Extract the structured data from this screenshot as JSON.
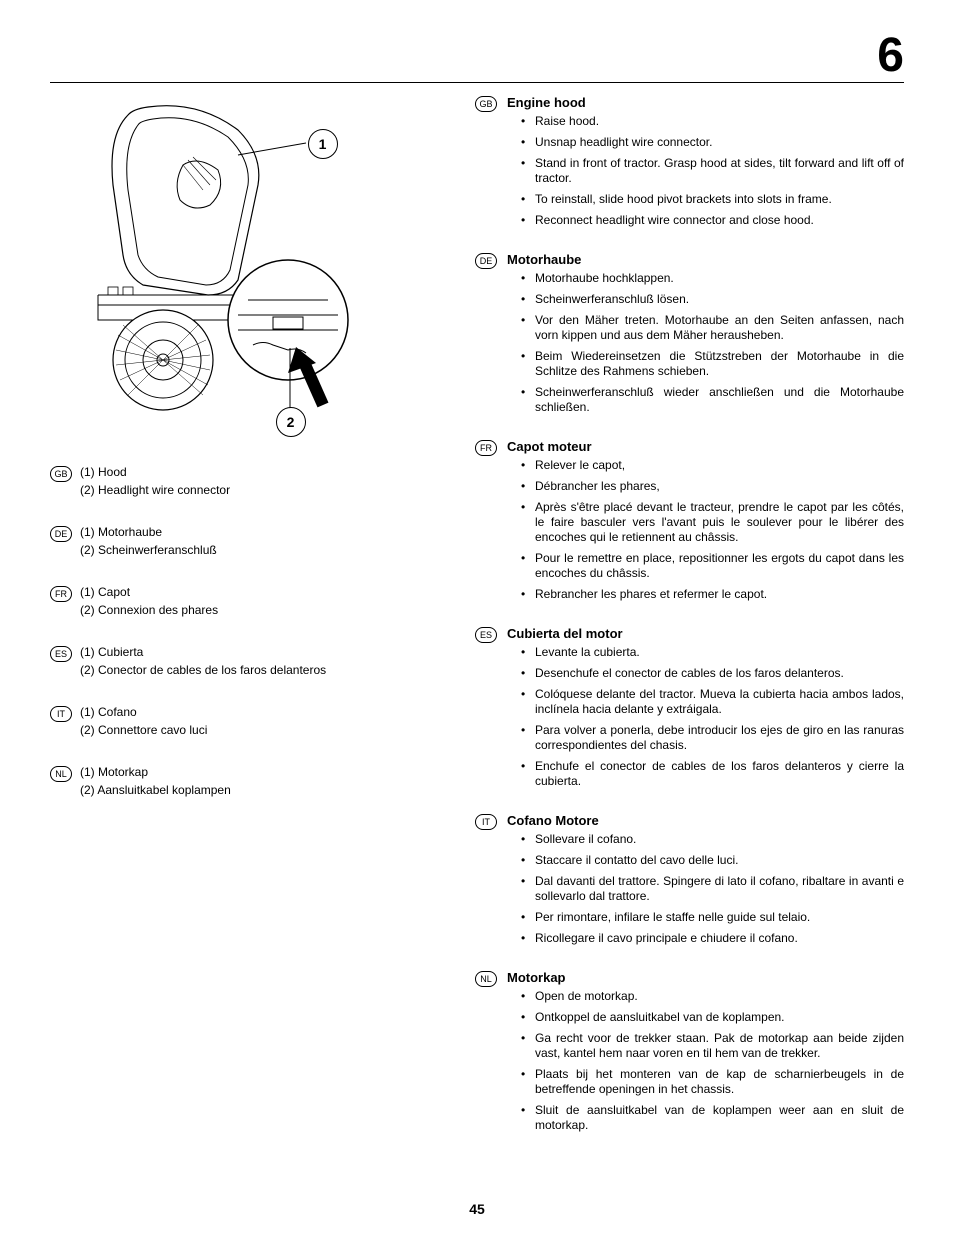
{
  "page": {
    "chapter_number": "6",
    "page_number": "45"
  },
  "diagram": {
    "callout1": "1",
    "callout2": "2"
  },
  "legends": [
    {
      "lang": "GB",
      "lines": [
        "(1)  Hood",
        "(2)  Headlight  wire connector"
      ]
    },
    {
      "lang": "DE",
      "lines": [
        "(1)  Motorhaube",
        "(2)  Scheinwerferanschluß"
      ]
    },
    {
      "lang": "FR",
      "lines": [
        "(1)  Capot",
        "(2)  Connexion des phares"
      ]
    },
    {
      "lang": "ES",
      "lines": [
        "(1)  Cubierta",
        "(2)  Conector de cables de los faros delanteros"
      ]
    },
    {
      "lang": "IT",
      "lines": [
        "(1)  Cofano",
        "(2)  Connettore cavo luci"
      ]
    },
    {
      "lang": "NL",
      "lines": [
        "(1)  Motorkap",
        "(2)  Aansluitkabel koplampen"
      ]
    }
  ],
  "sections": [
    {
      "lang": "GB",
      "title": "Engine hood",
      "items": [
        "Raise hood.",
        "Unsnap headlight wire connector.",
        "Stand in front of tractor.  Grasp hood at sides, tilt forward and lift off of tractor.",
        "To reinstall, slide hood pivot brackets into slots in frame.",
        "Reconnect headlight wire connector and close hood."
      ]
    },
    {
      "lang": "DE",
      "title": "Motorhaube",
      "items": [
        "Motorhaube hochklappen.",
        "Scheinwerferanschluß lösen.",
        "Vor den Mäher treten. Motorhaube an den Seiten anfassen, nach vorn kippen und aus dem Mäher herausheben.",
        "Beim Wiedereinsetzen die Stützstreben der Motorhaube in die Schlitze des Rahmens schieben.",
        "Scheinwerferanschluß wieder anschließen und die Motorhaube schließen."
      ]
    },
    {
      "lang": "FR",
      "title": "Capot moteur",
      "items": [
        "Relever le capot,",
        "Débrancher les phares,",
        "Après s'être placé devant le tracteur, prendre le capot par les côtés, le faire basculer vers l'avant puis le soulever pour le libérer des encoches qui le retiennent au châssis.",
        "Pour le remettre en place, repositionner les ergots du capot dans les encoches du châssis.",
        "Rebrancher les phares et refermer le capot."
      ]
    },
    {
      "lang": "ES",
      "title": "Cubierta del motor",
      "items": [
        "Levante la cubierta.",
        "Desenchufe el conector de cables de los faros delanteros.",
        "Colóquese delante del tractor. Mueva la cubierta hacia ambos lados, inclínela hacia delante y extráigala.",
        "Para volver a ponerla, debe introducir los ejes de giro en las ranuras correspondientes del chasis.",
        "Enchufe el conector de cables de los faros delanteros y cierre la cubierta."
      ]
    },
    {
      "lang": "IT",
      "title": "Cofano Motore",
      "items": [
        "Sollevare il cofano.",
        "Staccare il contatto del cavo delle luci.",
        "Dal davanti del trattore. Spingere di lato il cofano, ribaltare in avanti e sollevarlo dal trattore.",
        "Per rimontare, infilare le staffe nelle guide sul telaio.",
        "Ricollegare il cavo principale e chiudere il cofano."
      ]
    },
    {
      "lang": "NL",
      "title": "Motorkap",
      "items": [
        "Open de motorkap.",
        "Ontkoppel de aansluitkabel van de koplampen.",
        "Ga recht voor de trekker staan. Pak de motorkap aan beide zijden vast, kantel hem naar voren en til hem van de trekker.",
        "Plaats bij het monteren van de kap de scharnierbeugels in de betreffende openingen in het chassis.",
        "Sluit de aansluitkabel van de koplampen weer aan en sluit de motorkap."
      ]
    }
  ]
}
